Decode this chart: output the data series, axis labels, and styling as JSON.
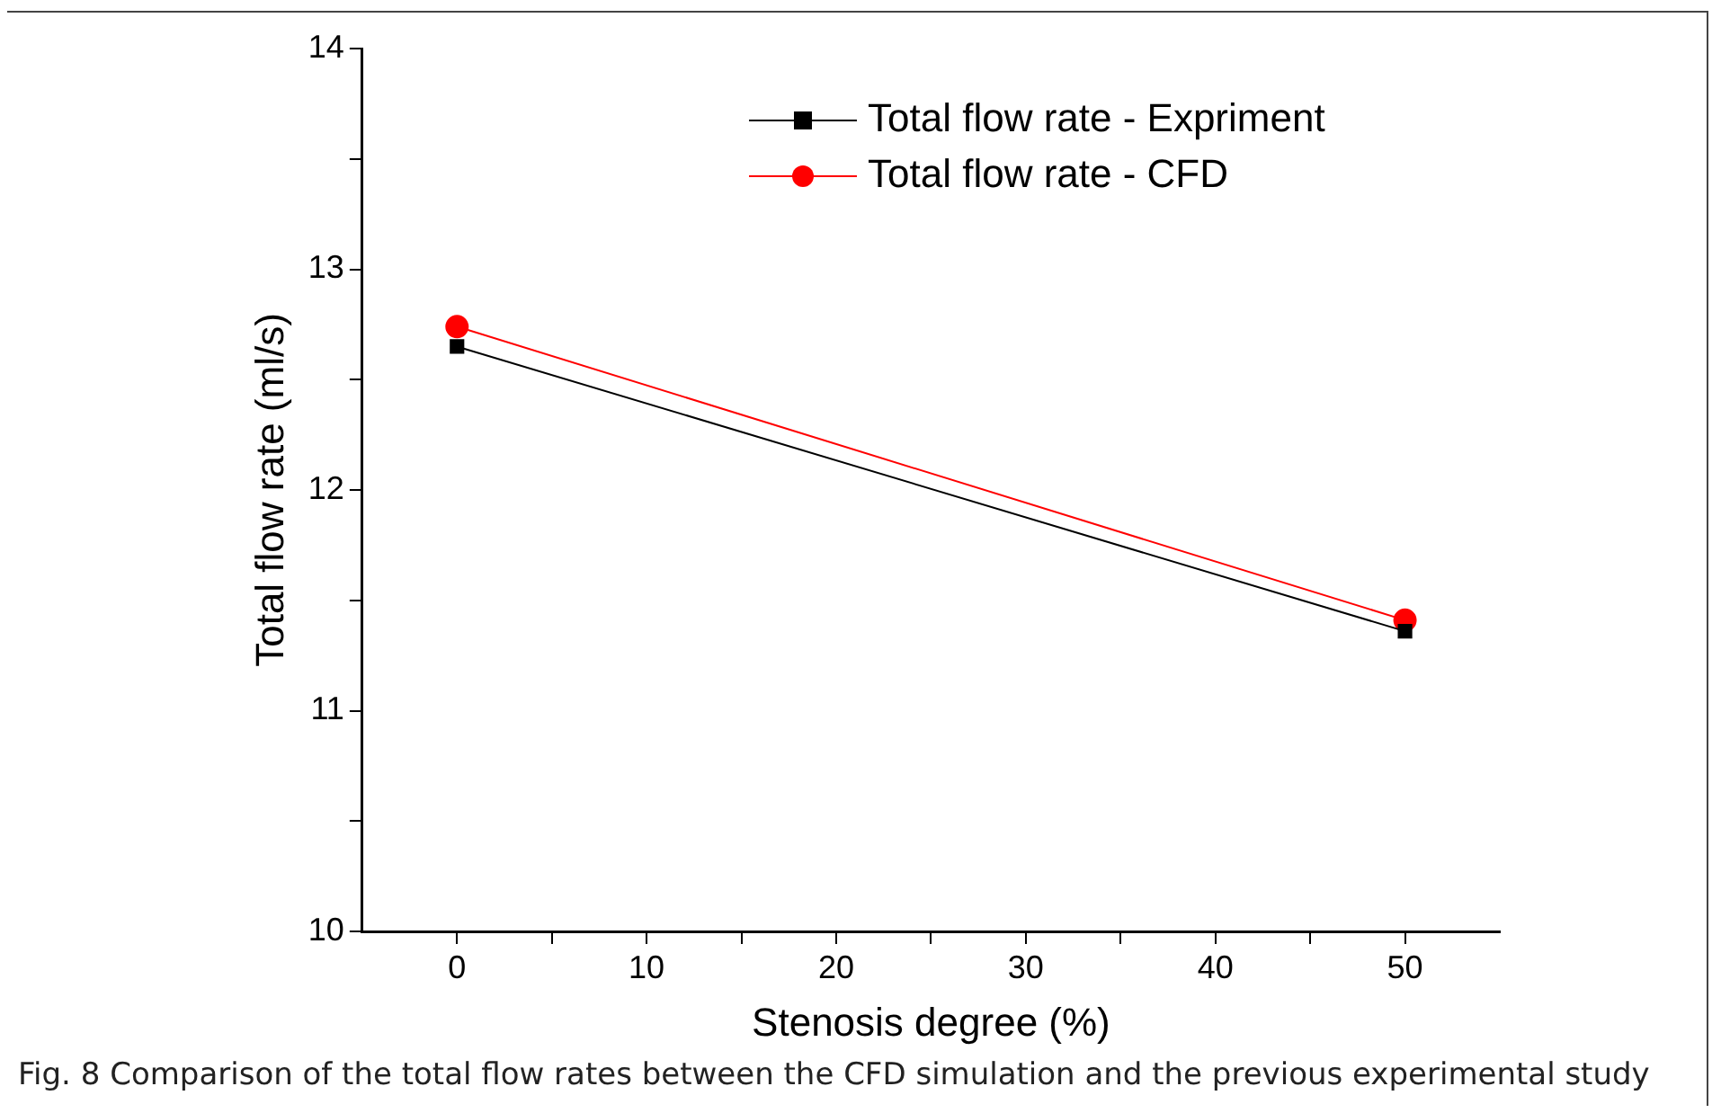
{
  "chart_data": {
    "type": "line",
    "xlabel": "Stenosis degree (%)",
    "ylabel": "Total flow rate (ml/s)",
    "x": [
      0,
      50
    ],
    "series": [
      {
        "name": "Total flow rate - Expriment",
        "color": "#000000",
        "marker": "square",
        "values": [
          12.65,
          11.36
        ]
      },
      {
        "name": "Total flow rate - CFD",
        "color": "#ff0000",
        "marker": "circle",
        "values": [
          12.74,
          11.41
        ]
      }
    ],
    "xlim": [
      -5,
      55
    ],
    "xticks": [
      0,
      {
        "value": 5,
        "label": null
      },
      10,
      {
        "value": 15,
        "label": null
      },
      20,
      {
        "value": 25,
        "label": null
      },
      30,
      {
        "value": 35,
        "label": null
      },
      40,
      {
        "value": 45,
        "label": null
      },
      50
    ],
    "ylim": [
      10,
      14
    ],
    "yticks": [
      10,
      {
        "value": 10.5,
        "label": null
      },
      11,
      {
        "value": 11.5,
        "label": null
      },
      12,
      {
        "value": 12.5,
        "label": null
      },
      13,
      {
        "value": 13.5,
        "label": null
      },
      14
    ],
    "grid": false,
    "legend": "top right",
    "line_style": "solid",
    "annotations": [
      "Fig. 8  Comparison of the total flow rates between the CFD simulation and the previous experimental study"
    ]
  }
}
